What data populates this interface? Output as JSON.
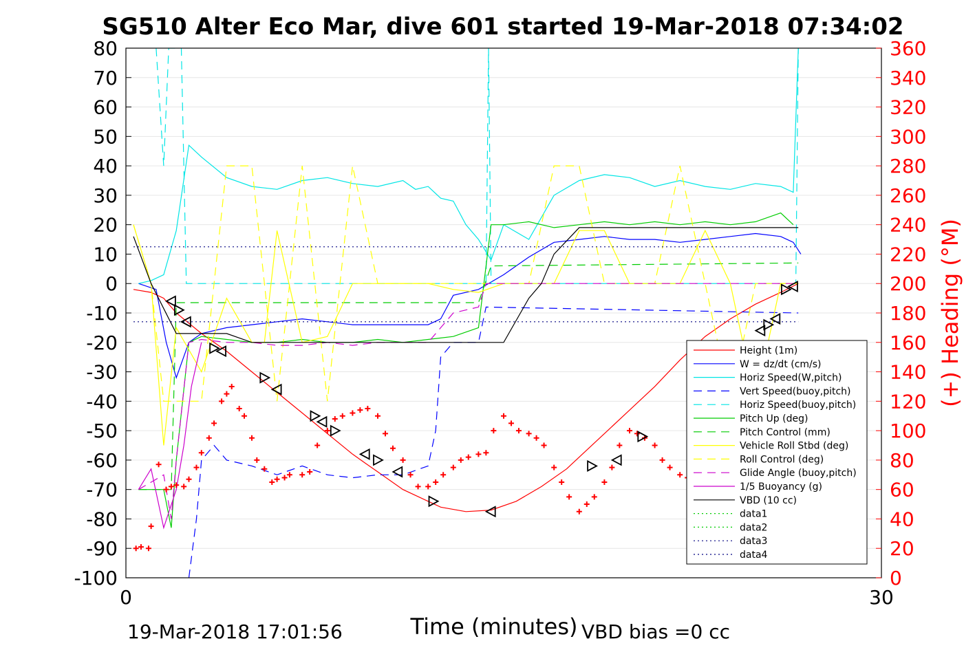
{
  "chart_data": {
    "type": "line",
    "title": "SG510 Alter Eco Mar, dive 601 started 19-Mar-2018 07:34:02",
    "xlabel": "Time (minutes)",
    "ylabel": "",
    "y2label": "(+) Heading (°M)",
    "xlim": [
      0,
      30
    ],
    "ylim": [
      -100,
      80
    ],
    "y2lim": [
      0,
      360
    ],
    "xticks": [
      "0",
      "30"
    ],
    "yticks": [
      "80",
      "70",
      "60",
      "50",
      "40",
      "30",
      "20",
      "10",
      "0",
      "-10",
      "-20",
      "-30",
      "-40",
      "-50",
      "-60",
      "-70",
      "-80",
      "-90",
      "-100"
    ],
    "y2ticks": [
      "360",
      "340",
      "320",
      "300",
      "280",
      "260",
      "240",
      "220",
      "200",
      "180",
      "160",
      "140",
      "120",
      "100",
      "80",
      "60",
      "40",
      "20",
      "0"
    ],
    "grid": true,
    "legend_position": "lower-right",
    "footer_left": "19-Mar-2018 17:01:56",
    "footer_right": "VBD bias =0 cc",
    "axis_color_right": "#ff0000",
    "series": [
      {
        "name": "Height (1m)",
        "color": "#ff0000",
        "style": "solid",
        "x": [
          0.3,
          1.0,
          1.5,
          2.0,
          3.0,
          4.0,
          5.0,
          6.0,
          7.0,
          8.0,
          9.0,
          9.5,
          10.0,
          11.0,
          12.0,
          12.5,
          13.5,
          14.5,
          15.5,
          16.5,
          17.5,
          18.0,
          19.0,
          20.0,
          21.0,
          22.0,
          23.0,
          24.0,
          25.0,
          26.0,
          26.7
        ],
        "y": [
          -2,
          -3,
          -5,
          -10,
          -17,
          -23,
          -30,
          -37,
          -44,
          -51,
          -58,
          -61,
          -64,
          -70,
          -74,
          -76,
          -77.5,
          -77,
          -74,
          -69,
          -63,
          -59,
          -51,
          -43,
          -35,
          -26,
          -18,
          -12,
          -7,
          -3,
          0
        ]
      },
      {
        "name": "W = dz/dt (cm/s)",
        "color": "#0000ff",
        "style": "solid",
        "x": [
          0.5,
          1.2,
          1.6,
          2.0,
          2.5,
          3.0,
          4.0,
          5.0,
          6.0,
          7.0,
          8.0,
          9.0,
          10.0,
          11.0,
          12.0,
          12.5,
          13.0,
          14.0,
          15.0,
          16.0,
          17.0,
          18.0,
          19.0,
          20.0,
          21.0,
          22.0,
          23.0,
          24.0,
          25.0,
          26.0,
          26.5,
          26.8
        ],
        "y": [
          0,
          -2,
          -20,
          -32,
          -20,
          -17,
          -15,
          -14,
          -13,
          -12,
          -13,
          -14,
          -14,
          -14,
          -14,
          -12,
          -4,
          -2,
          3,
          9,
          14,
          15,
          16,
          15,
          15,
          14,
          15,
          16,
          17,
          16,
          14,
          10
        ]
      },
      {
        "name": "Horiz Speed(W,pitch)",
        "color": "#00e5e5",
        "style": "solid",
        "x": [
          0.5,
          1.0,
          1.5,
          2.0,
          2.5,
          3.0,
          4.0,
          5.0,
          6.0,
          7.0,
          8.0,
          9.0,
          10.0,
          11.0,
          11.5,
          12.0,
          12.5,
          13.0,
          13.5,
          14.0,
          14.5,
          15.0,
          16.0,
          17.0,
          18.0,
          19.0,
          20.0,
          21.0,
          22.0,
          23.0,
          24.0,
          25.0,
          26.0,
          26.5,
          26.7
        ],
        "y": [
          0,
          1,
          3,
          18,
          47,
          43,
          36,
          33,
          32,
          35,
          36,
          34,
          33,
          35,
          32,
          33,
          29,
          28,
          20,
          15,
          8,
          20,
          15,
          30,
          35,
          37,
          36,
          33,
          35,
          33,
          32,
          34,
          33,
          31,
          80
        ]
      },
      {
        "name": "Vert Speed(buoy,pitch)",
        "color": "#0000ff",
        "style": "dashed",
        "x": [
          2.5,
          2.8,
          3.0,
          3.5,
          4.0,
          5.0,
          6.0,
          7.0,
          8.0,
          9.0,
          10.0,
          11.0,
          12.0,
          12.3,
          12.5,
          13.0,
          14.0,
          14.3,
          26.7
        ],
        "y": [
          -100,
          -80,
          -60,
          -55,
          -60,
          -62,
          -65,
          -62,
          -65,
          -66,
          -65,
          -65,
          -62,
          -50,
          -25,
          -20,
          -20,
          -8,
          -10
        ]
      },
      {
        "name": "Horiz Speed(buoy,pitch)",
        "color": "#00e5e5",
        "style": "dashed",
        "x": [
          1.2,
          1.5,
          1.7,
          2.0,
          2.2,
          2.4,
          14.3,
          14.4,
          14.5,
          26.6,
          26.7
        ],
        "y": [
          80,
          40,
          80,
          80,
          80,
          0,
          0,
          80,
          0,
          0,
          80
        ]
      },
      {
        "name": "Pitch Up (deg)",
        "color": "#00cc00",
        "style": "solid",
        "x": [
          0.5,
          1.5,
          1.8,
          2.0,
          2.5,
          3.0,
          4.0,
          5.0,
          6.0,
          7.0,
          8.0,
          9.0,
          10.0,
          11.0,
          12.0,
          13.0,
          14.0,
          14.5,
          15.0,
          16.0,
          17.0,
          18.0,
          19.0,
          20.0,
          21.0,
          22.0,
          23.0,
          24.0,
          25.0,
          26.0,
          26.5
        ],
        "y": [
          -70,
          -70,
          -83,
          -60,
          -20,
          -18,
          -19,
          -20,
          -20,
          -19,
          -20,
          -20,
          -19,
          -20,
          -19,
          -18,
          -15,
          20,
          20,
          21,
          19,
          20,
          21,
          20,
          21,
          20,
          21,
          20,
          21,
          24,
          20
        ]
      },
      {
        "name": "Pitch Control (mm)",
        "color": "#00cc00",
        "style": "dashed",
        "x": [
          0.5,
          1.8,
          2.0,
          13.5,
          14.0,
          14.5,
          26.7
        ],
        "y": [
          -70,
          -70,
          -6.5,
          -6.5,
          -6.5,
          6,
          7
        ]
      },
      {
        "name": "Vehicle Roll Stbd (deg)",
        "color": "#ffff00",
        "style": "solid",
        "x": [
          0.3,
          1.0,
          1.5,
          2.0,
          3.0,
          4.0,
          5.0,
          5.5,
          6.0,
          7.0,
          8.0,
          9.0,
          10.0,
          11.0,
          12.0,
          13.0,
          14.0,
          15.0,
          16.0,
          17.0,
          18.0,
          19.0,
          20.0,
          21.0,
          22.0,
          23.0,
          24.0,
          25.0,
          26.0,
          26.7
        ],
        "y": [
          20,
          0,
          -55,
          -15,
          -30,
          -5,
          -20,
          -20,
          18,
          -20,
          -18,
          0,
          0,
          0,
          0,
          -2,
          -3,
          0,
          0,
          0,
          18,
          18,
          0,
          0,
          0,
          18,
          0,
          -40,
          0,
          0
        ]
      },
      {
        "name": "Roll Control (deg)",
        "color": "#ffff00",
        "style": "dashed",
        "x": [
          0.3,
          1.0,
          1.5,
          2.0,
          3.0,
          4.0,
          5.0,
          6.0,
          7.0,
          8.0,
          9.0,
          10.0,
          11.0,
          12.0,
          13.0,
          14.0,
          15.0,
          16.0,
          17.0,
          18.0,
          19.0,
          20.0,
          21.0,
          22.0,
          23.0,
          24.0,
          25.0,
          26.0,
          26.7
        ],
        "y": [
          20,
          0,
          -40,
          -40,
          -40,
          40,
          40,
          -40,
          40,
          -40,
          40,
          0,
          0,
          0,
          0,
          0,
          0,
          0,
          40,
          40,
          0,
          0,
          0,
          40,
          0,
          -40,
          0,
          0,
          0
        ]
      },
      {
        "name": "Glide Angle (buoy,pitch)",
        "color": "#cc00cc",
        "style": "dashed",
        "x": [
          0.5,
          1.5,
          1.8,
          2.0,
          2.5,
          3.0,
          4.0,
          5.0,
          6.0,
          7.0,
          8.0,
          9.0,
          10.0,
          11.0,
          12.0,
          13.0,
          14.0,
          14.3,
          26.7
        ],
        "y": [
          -70,
          -65,
          -80,
          -60,
          -20,
          -19,
          -20,
          -20,
          -21,
          -21,
          -20,
          -21,
          -20,
          -20,
          -20,
          -10,
          -8,
          0,
          0
        ]
      },
      {
        "name": "1/5 Buoyancy (g)",
        "color": "#cc00cc",
        "style": "solid",
        "x": [
          0.5,
          1.0,
          1.5,
          2.0,
          2.3,
          2.6,
          3.0
        ],
        "y": [
          -70,
          -63,
          -83,
          -70,
          -55,
          -35,
          -20
        ]
      },
      {
        "name": "VBD (10 cc)",
        "color": "#000000",
        "style": "solid",
        "x": [
          0.3,
          1.0,
          2.0,
          3.0,
          4.0,
          5.0,
          6.0,
          7.0,
          8.0,
          9.0,
          10.0,
          11.0,
          12.0,
          13.0,
          14.0,
          15.0,
          16.0,
          16.5,
          17.0,
          18.0,
          19.0,
          20.0,
          21.0,
          22.0,
          23.0,
          24.0,
          25.0,
          26.0,
          26.7
        ],
        "y": [
          16,
          0,
          -17,
          -17,
          -17,
          -20,
          -20,
          -20,
          -20,
          -20,
          -20,
          -20,
          -20,
          -20,
          -20,
          -20,
          -5,
          0,
          10,
          19,
          19,
          19,
          19,
          19,
          19,
          19,
          19,
          19,
          19
        ]
      },
      {
        "name": "data1",
        "color": "#00cc00",
        "style": "dotted",
        "x": [],
        "y": []
      },
      {
        "name": "data2",
        "color": "#00cc00",
        "style": "dotted",
        "x": [],
        "y": []
      },
      {
        "name": "data3",
        "color": "#000080",
        "style": "dotted",
        "x": [
          0.3,
          26.7
        ],
        "y": [
          12.5,
          12.5
        ]
      },
      {
        "name": "data4",
        "color": "#000080",
        "style": "dotted",
        "x": [
          0.3,
          26.7
        ],
        "y": [
          -13,
          -13
        ]
      }
    ],
    "heading_points": {
      "axis": "right",
      "color": "#ff0000",
      "marker": "+",
      "x": [
        0.4,
        0.6,
        0.9,
        1.0,
        1.3,
        1.6,
        1.8,
        2.0,
        2.3,
        2.5,
        2.8,
        3.0,
        3.3,
        3.5,
        3.8,
        4.0,
        4.2,
        4.5,
        4.7,
        5.0,
        5.2,
        5.5,
        5.8,
        6.0,
        6.3,
        6.5,
        7.0,
        7.3,
        7.6,
        8.0,
        8.3,
        8.6,
        9.0,
        9.3,
        9.6,
        10.0,
        10.3,
        10.6,
        11.0,
        11.3,
        11.6,
        12.0,
        12.3,
        12.6,
        13.0,
        13.3,
        13.6,
        14.0,
        14.3,
        14.6,
        15.0,
        15.3,
        15.6,
        16.0,
        16.3,
        16.6,
        17.0,
        17.3,
        17.6,
        18.0,
        18.3,
        18.6,
        19.0,
        19.3,
        19.6,
        20.0,
        20.3,
        20.6,
        21.0,
        21.3,
        21.6,
        22.0,
        22.3,
        22.6,
        23.0,
        23.3,
        23.6,
        24.0,
        24.3,
        24.6,
        25.0,
        25.3,
        25.6,
        26.0,
        26.3,
        26.6
      ],
      "y": [
        20,
        21,
        20,
        35,
        77,
        60,
        62,
        63,
        62,
        67,
        75,
        85,
        95,
        105,
        120,
        125,
        130,
        115,
        110,
        95,
        80,
        74,
        65,
        67,
        68,
        70,
        70,
        72,
        90,
        100,
        108,
        110,
        112,
        114,
        115,
        110,
        98,
        88,
        80,
        70,
        62,
        62,
        65,
        70,
        75,
        80,
        82,
        84,
        85,
        100,
        110,
        105,
        100,
        98,
        95,
        90,
        75,
        65,
        55,
        45,
        50,
        55,
        65,
        75,
        90,
        100,
        98,
        95,
        90,
        80,
        75,
        70,
        68,
        65,
        85,
        98,
        102,
        103,
        105,
        95,
        78,
        72,
        68,
        60,
        45,
        65
      ]
    },
    "marker_points": {
      "color": "#000000",
      "marker": "triangle",
      "x": [
        1.8,
        2.1,
        2.4,
        3.5,
        3.8,
        5.5,
        6.0,
        7.5,
        7.8,
        8.3,
        9.5,
        10.0,
        10.8,
        12.2,
        14.5,
        18.5,
        19.5,
        20.5,
        22.8,
        23.3,
        25.2,
        25.5,
        25.8,
        26.2,
        26.5
      ],
      "y": [
        -6,
        -9,
        -13,
        -22,
        -23,
        -32,
        -36,
        -45,
        -47,
        -50,
        -58,
        -60,
        -64,
        -74,
        -77.5,
        -62,
        -60,
        -52,
        -33,
        -27,
        -16,
        -14,
        -12,
        -2,
        -1
      ]
    }
  }
}
